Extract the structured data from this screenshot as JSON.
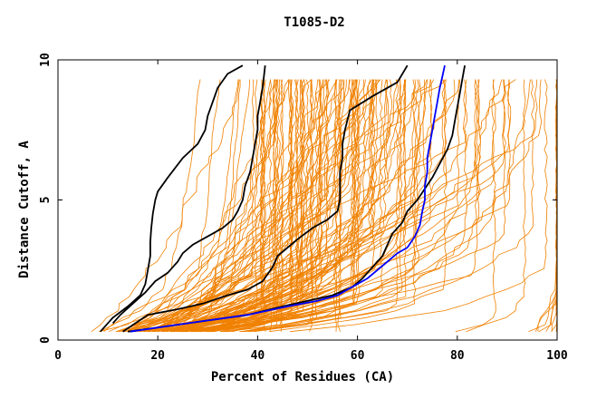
{
  "chart_data": {
    "type": "line",
    "title": "T1085-D2",
    "xlabel": "Percent of Residues (CA)",
    "ylabel": "Distance Cutoff, A",
    "xlim": [
      0,
      100
    ],
    "ylim": [
      0,
      10
    ],
    "xticks": [
      "0",
      "20",
      "40",
      "60",
      "80",
      "100"
    ],
    "yticks": [
      "0",
      "5",
      "10"
    ],
    "grid": false,
    "legend": "none",
    "colors": {
      "bundle": "#f08000",
      "highlight_black": "#000000",
      "highlight_blue": "#0000ff",
      "frame": "#000000",
      "background": "#ffffff"
    },
    "bundle_count": 150,
    "highlight_series": [
      {
        "color": "#000000",
        "points": [
          [
            8.5,
            0.3
          ],
          [
            11,
            0.8
          ],
          [
            14,
            1.2
          ],
          [
            16.5,
            1.6
          ],
          [
            17.5,
            2
          ],
          [
            18,
            2.5
          ],
          [
            18.5,
            3
          ],
          [
            18.5,
            3.5
          ],
          [
            18.7,
            4
          ],
          [
            19,
            4.5
          ],
          [
            19.5,
            5
          ],
          [
            20,
            5.3
          ],
          [
            22,
            5.8
          ],
          [
            25,
            6.5
          ],
          [
            28,
            7
          ],
          [
            29.5,
            7.5
          ],
          [
            30,
            8
          ],
          [
            31,
            8.5
          ],
          [
            32,
            9
          ],
          [
            34,
            9.5
          ],
          [
            37,
            9.8
          ]
        ]
      },
      {
        "color": "#000000",
        "points": [
          [
            13,
            0.3
          ],
          [
            15.5,
            0.6
          ],
          [
            18,
            0.9
          ],
          [
            24,
            1.1
          ],
          [
            29,
            1.3
          ],
          [
            34,
            1.6
          ],
          [
            38,
            1.8
          ],
          [
            41,
            2.1
          ],
          [
            43,
            2.6
          ],
          [
            44,
            3
          ],
          [
            46,
            3.3
          ],
          [
            48,
            3.6
          ],
          [
            51,
            4
          ],
          [
            54,
            4.3
          ],
          [
            56,
            4.6
          ],
          [
            56.5,
            5
          ],
          [
            56.5,
            5.5
          ],
          [
            56.5,
            6
          ],
          [
            57,
            6.5
          ],
          [
            57,
            7
          ],
          [
            57.5,
            7.5
          ],
          [
            58.5,
            8.2
          ],
          [
            63,
            8.7
          ],
          [
            68,
            9.2
          ],
          [
            70,
            9.8
          ]
        ]
      },
      {
        "color": "#000000",
        "points": [
          [
            14,
            0.3
          ],
          [
            22,
            0.5
          ],
          [
            30,
            0.7
          ],
          [
            38,
            0.9
          ],
          [
            45,
            1.2
          ],
          [
            50,
            1.4
          ],
          [
            55,
            1.6
          ],
          [
            59,
            1.9
          ],
          [
            61,
            2.2
          ],
          [
            63,
            2.6
          ],
          [
            65,
            3
          ],
          [
            66,
            3.4
          ],
          [
            67,
            3.8
          ],
          [
            69,
            4.2
          ],
          [
            70,
            4.6
          ],
          [
            72,
            5
          ],
          [
            73.5,
            5.4
          ],
          [
            75,
            5.8
          ],
          [
            76.5,
            6.3
          ],
          [
            78,
            6.8
          ],
          [
            79,
            7.3
          ],
          [
            79.5,
            7.8
          ],
          [
            80,
            8.3
          ],
          [
            80.5,
            8.8
          ],
          [
            81,
            9.3
          ],
          [
            81.5,
            9.8
          ]
        ]
      },
      {
        "color": "#000000",
        "points": [
          [
            11,
            0.6
          ],
          [
            12.5,
            0.9
          ],
          [
            15,
            1.3
          ],
          [
            17.5,
            1.7
          ],
          [
            19.5,
            2.1
          ],
          [
            22,
            2.4
          ],
          [
            24,
            2.8
          ],
          [
            25,
            3.1
          ],
          [
            27,
            3.4
          ],
          [
            30,
            3.7
          ],
          [
            33,
            4
          ],
          [
            35,
            4.3
          ],
          [
            36,
            4.6
          ],
          [
            37,
            5
          ],
          [
            37.5,
            5.5
          ],
          [
            38.5,
            6
          ],
          [
            39,
            6.5
          ],
          [
            39.5,
            7
          ],
          [
            40,
            7.5
          ],
          [
            40,
            8
          ],
          [
            40.5,
            8.5
          ],
          [
            41,
            9
          ],
          [
            41.5,
            9.8
          ]
        ]
      },
      {
        "color": "#0000ff",
        "points": [
          [
            14.5,
            0.3
          ],
          [
            22,
            0.5
          ],
          [
            30,
            0.7
          ],
          [
            38,
            0.9
          ],
          [
            46,
            1.2
          ],
          [
            52,
            1.4
          ],
          [
            56,
            1.6
          ],
          [
            59,
            1.9
          ],
          [
            62,
            2.2
          ],
          [
            64,
            2.5
          ],
          [
            66,
            2.8
          ],
          [
            68,
            3.1
          ],
          [
            70,
            3.3
          ],
          [
            71.5,
            3.7
          ],
          [
            72.5,
            4.1
          ],
          [
            73,
            4.6
          ],
          [
            73.5,
            5
          ],
          [
            73.5,
            5.5
          ],
          [
            74,
            6
          ],
          [
            74,
            6.5
          ],
          [
            74.5,
            7
          ],
          [
            75,
            7.5
          ],
          [
            75.5,
            8
          ],
          [
            76,
            8.5
          ],
          [
            76.5,
            9
          ],
          [
            77,
            9.4
          ],
          [
            77.5,
            9.8
          ]
        ]
      }
    ]
  }
}
